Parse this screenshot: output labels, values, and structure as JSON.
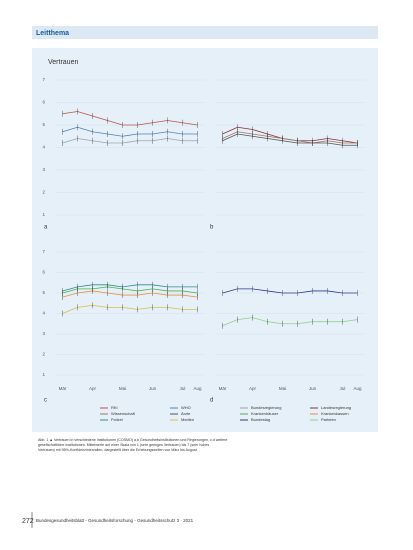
{
  "header": {
    "section": "Leitthema"
  },
  "figure": {
    "title": "Vertrauen",
    "ylim": [
      1,
      7
    ],
    "yticks": [
      1,
      2,
      3,
      4,
      5,
      6,
      7
    ],
    "categories": [
      "Mär",
      null,
      "Apr",
      null,
      "Mai",
      null,
      "Jun",
      null,
      "Jul",
      "Aug"
    ],
    "panels": [
      {
        "label": "a",
        "series": [
          {
            "name": "RKI",
            "color": "#c0504d",
            "values": [
              5.5,
              5.6,
              5.4,
              5.2,
              5.0,
              5.0,
              5.1,
              5.2,
              5.1,
              5.0
            ]
          },
          {
            "name": "WHO",
            "color": "#4f81bd",
            "values": [
              4.7,
              4.9,
              4.7,
              4.6,
              4.5,
              4.6,
              4.6,
              4.7,
              4.6,
              4.6
            ]
          },
          {
            "name": "Bundesregierung",
            "color": "#9aa3b5",
            "values": [
              4.2,
              4.4,
              4.3,
              4.2,
              4.2,
              4.3,
              4.3,
              4.4,
              4.3,
              4.3
            ]
          }
        ]
      },
      {
        "label": "b",
        "series": [
          {
            "name": "Landesregierung",
            "color": "#8b2f3a",
            "values": [
              4.6,
              4.9,
              4.8,
              4.6,
              4.4,
              4.3,
              4.3,
              4.4,
              4.3,
              4.2
            ]
          },
          {
            "name": "Wissenschaft",
            "color": "#a0785a",
            "values": [
              4.4,
              4.7,
              4.6,
              4.5,
              4.4,
              4.3,
              4.2,
              4.3,
              4.2,
              4.2
            ]
          },
          {
            "name": "Ärzte",
            "color": "#555555",
            "values": [
              4.3,
              4.6,
              4.5,
              4.4,
              4.3,
              4.2,
              4.2,
              4.2,
              4.1,
              4.1
            ]
          }
        ]
      },
      {
        "label": "c",
        "series": [
          {
            "name": "Krankenhäuser",
            "color": "#4caf50",
            "values": [
              5.0,
              5.2,
              5.2,
              5.3,
              5.2,
              5.1,
              5.2,
              5.1,
              5.1,
              5.0
            ]
          },
          {
            "name": "Krankenkassen",
            "color": "#e8903c",
            "values": [
              4.8,
              5.0,
              5.1,
              5.0,
              4.9,
              4.9,
              5.0,
              4.9,
              4.9,
              4.8
            ]
          },
          {
            "name": "Polizei",
            "color": "#2e8b8b",
            "values": [
              5.1,
              5.3,
              5.4,
              5.4,
              5.3,
              5.4,
              5.4,
              5.3,
              5.3,
              5.3
            ]
          },
          {
            "name": "Medien",
            "color": "#d4c24a",
            "values": [
              4.0,
              4.3,
              4.4,
              4.3,
              4.3,
              4.2,
              4.3,
              4.3,
              4.2,
              4.2
            ]
          }
        ]
      },
      {
        "label": "d",
        "series": [
          {
            "name": "Bundestag",
            "color": "#2b3a8c",
            "values": [
              5.0,
              5.2,
              5.2,
              5.1,
              5.0,
              5.0,
              5.1,
              5.1,
              5.0,
              5.0
            ]
          },
          {
            "name": "Parteien",
            "color": "#8fd18f",
            "values": [
              3.4,
              3.7,
              3.8,
              3.6,
              3.5,
              3.5,
              3.6,
              3.6,
              3.6,
              3.7
            ]
          }
        ]
      }
    ]
  },
  "caption": "Abb. 1 ▲ Vertrauen in verschiedene Institutionen (COSMO) a,b Gesundheitsinstitutionen und Regierungen, c,d weitere gesellschaftliche Institutionen. Mittelwerte auf einer Skala von 1 (sehr geringes Vertrauen) bis 7 (sehr hohes Vertrauen) mit 95%-Konfidenzintervallen, dargestellt über die Erhebungswellen von März bis August",
  "footer": {
    "page": "272",
    "journal": "Bundesgesundheitsblatt - Gesundheitsforschung - Gesundheitsschutz 3 · 2021"
  }
}
